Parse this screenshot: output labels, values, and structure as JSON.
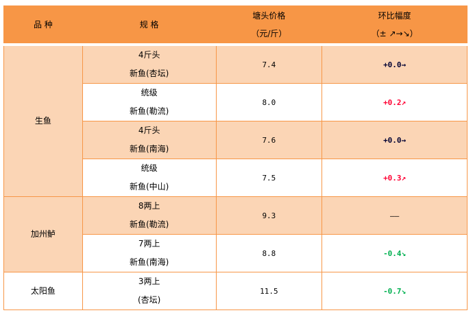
{
  "header": {
    "variety": "品 种",
    "spec": "规 格",
    "price_line1": "塘头价格",
    "price_line2": "（元/斤）",
    "change_line1": "环比幅度",
    "change_line2": "（±  ↗→↘）"
  },
  "groups": [
    {
      "name": "生鱼"
    },
    {
      "name": "加州鲈"
    },
    {
      "name": "太阳鱼"
    }
  ],
  "rows": [
    {
      "spec1": "4斤头",
      "spec2": "新鱼(杏坛)",
      "price": "7.4",
      "change": "+0.0→",
      "trend": "flat"
    },
    {
      "spec1": "统级",
      "spec2": "新鱼(勒流)",
      "price": "8.0",
      "change": "+0.2↗",
      "trend": "up"
    },
    {
      "spec1": "4斤头",
      "spec2": "新鱼(南海)",
      "price": "7.6",
      "change": "+0.0→",
      "trend": "flat"
    },
    {
      "spec1": "统级",
      "spec2": "新鱼(中山)",
      "price": "7.5",
      "change": "+0.3↗",
      "trend": "up"
    },
    {
      "spec1": "8两上",
      "spec2": "新鱼(勒流)",
      "price": "9.3",
      "change": "——",
      "trend": "none"
    },
    {
      "spec1": "7两上",
      "spec2": "新鱼(南海)",
      "price": "8.8",
      "change": "-0.4↘",
      "trend": "down"
    },
    {
      "spec1": "3两上",
      "spec2": "(杏坛)",
      "price": "11.5",
      "change": "-0.7↘",
      "trend": "down"
    }
  ],
  "colors": {
    "header": "#f79646",
    "stripe": "#fbd5b5",
    "up": "#ff0033",
    "down": "#00b050",
    "flat": "#000033"
  }
}
